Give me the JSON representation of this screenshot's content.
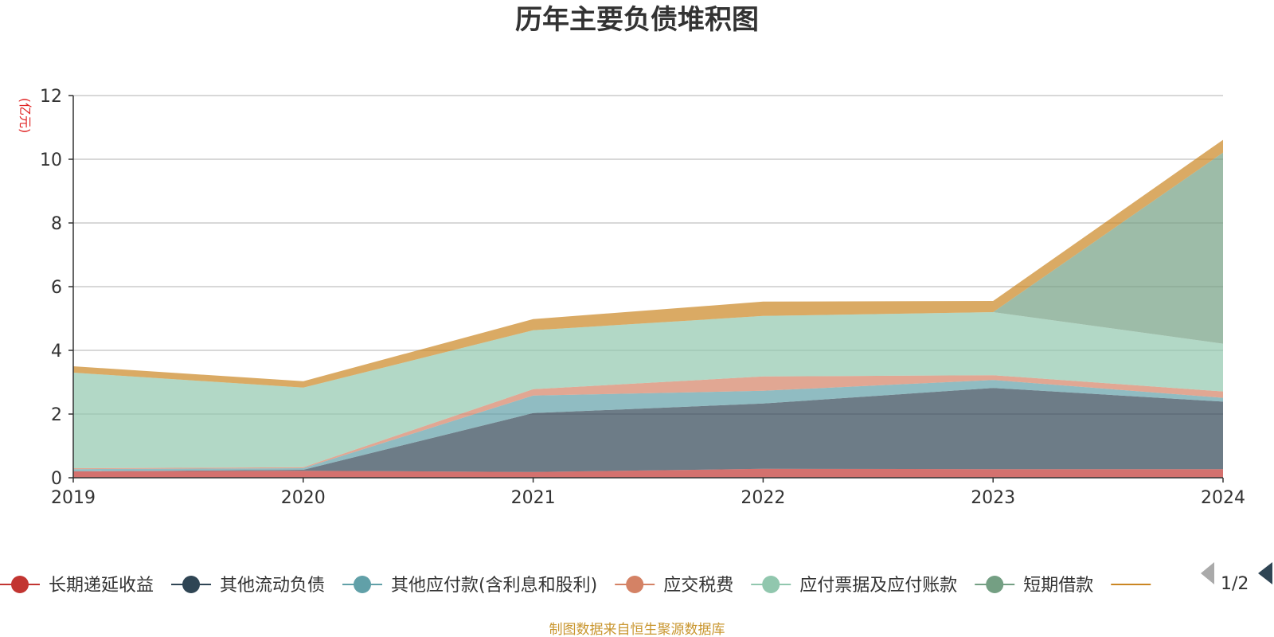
{
  "chart_data": {
    "type": "area",
    "title": "历年主要负债堆积图",
    "ylabel": "(亿元)",
    "xlabel": "",
    "stacked": true,
    "categories": [
      "2019",
      "2020",
      "2021",
      "2022",
      "2023",
      "2024"
    ],
    "ylim": [
      0,
      12
    ],
    "yticks": [
      0,
      2,
      4,
      6,
      8,
      10,
      12
    ],
    "grid": true,
    "legend_position": "bottom",
    "series": [
      {
        "name": "长期递延收益",
        "color": "#c23531",
        "values": [
          0.2,
          0.22,
          0.18,
          0.28,
          0.27,
          0.27
        ]
      },
      {
        "name": "其他流动负债",
        "color": "#2f4554",
        "values": [
          0.0,
          0.03,
          1.85,
          2.05,
          2.55,
          2.12
        ]
      },
      {
        "name": "其他应付款(含利息和股利)",
        "color": "#61a0a8",
        "values": [
          0.07,
          0.05,
          0.55,
          0.4,
          0.25,
          0.12
        ]
      },
      {
        "name": "应交税费",
        "color": "#d48265",
        "values": [
          0.03,
          0.03,
          0.2,
          0.45,
          0.15,
          0.2
        ]
      },
      {
        "name": "应付票据及应付账款",
        "color": "#91c7ae",
        "values": [
          3.0,
          2.5,
          1.85,
          1.9,
          1.98,
          1.5
        ]
      },
      {
        "name": "短期借款",
        "color": "#749f83",
        "values": [
          0.0,
          0.0,
          0.0,
          0.0,
          0.0,
          6.0
        ]
      },
      {
        "name": "",
        "color": "#ca8622",
        "values": [
          0.2,
          0.2,
          0.35,
          0.45,
          0.35,
          0.4
        ]
      }
    ],
    "legend_visible": [
      "长期递延收益",
      "其他流动负债",
      "其他应付款(含利息和股利)",
      "应交税费",
      "应付票据及应付账款",
      "短期借款"
    ],
    "legend_page": "1/2"
  },
  "source_note": "制图数据来自恒生聚源数据库"
}
